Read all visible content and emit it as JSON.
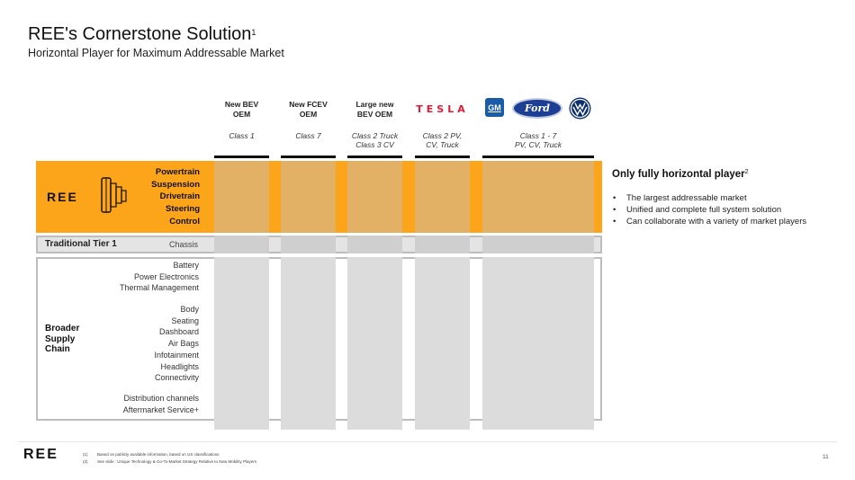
{
  "header": {
    "title": "REE's Cornerstone Solution",
    "title_sup": "1",
    "subtitle": "Horizontal Player for Maximum Addressable Market"
  },
  "columns": [
    {
      "head": [
        "New BEV",
        "OEM"
      ],
      "class": [
        "Class 1"
      ]
    },
    {
      "head": [
        "New FCEV",
        "OEM"
      ],
      "class": [
        "Class 7"
      ]
    },
    {
      "head": [
        "Large new",
        "BEV OEM"
      ],
      "class": [
        "Class 2 Truck",
        "Class 3 CV"
      ]
    },
    {
      "logo": "TESLA",
      "class": [
        "Class 2 PV,",
        "CV, Truck"
      ]
    },
    {
      "logos": [
        "GM",
        "Ford"
      ],
      "class": [
        "Class 1 - 7",
        "PV, CV, Truck"
      ]
    }
  ],
  "ree_layers": {
    "brand": "REE",
    "items": [
      "Powertrain",
      "Suspension",
      "Drivetrain",
      "Steering",
      "Control"
    ]
  },
  "tier1": {
    "label": "Traditional Tier 1",
    "item": "Chassis"
  },
  "supply_chain": {
    "label": [
      "Broader",
      "Supply",
      "Chain"
    ],
    "group1": [
      "Battery",
      "Power Electronics",
      "Thermal Management"
    ],
    "group2": [
      "Body",
      "Seating",
      "Dashboard",
      "Air Bags",
      "Infotainment",
      "Headlights",
      "Connectivity"
    ],
    "group3": [
      "Distribution channels",
      "Aftermarket Service+"
    ]
  },
  "side_panel": {
    "title": "Only fully horizontal player",
    "title_sup": "2",
    "bullets": [
      "The largest addressable market",
      "Unified and complete full system solution",
      "Can collaborate with a variety of market players"
    ]
  },
  "footer": {
    "brand": "REE",
    "notes": [
      {
        "num": "(1)",
        "text": "Based on publicly available information, based on US classifications"
      },
      {
        "num": "(2)",
        "text": "See slide : Unique Technology & Go-To-Market Strategy Relative to New Mobility Players"
      }
    ],
    "page_number": "11"
  },
  "colors": {
    "orange": "#fca41a",
    "orange_col": "#e2b166",
    "gray_col": "#dcdcdc",
    "gm_blue": "#1b5ca8",
    "ford_blue": "#1c3f94",
    "vw_blue": "#0d2f6b",
    "tesla_red": "#e31937"
  }
}
